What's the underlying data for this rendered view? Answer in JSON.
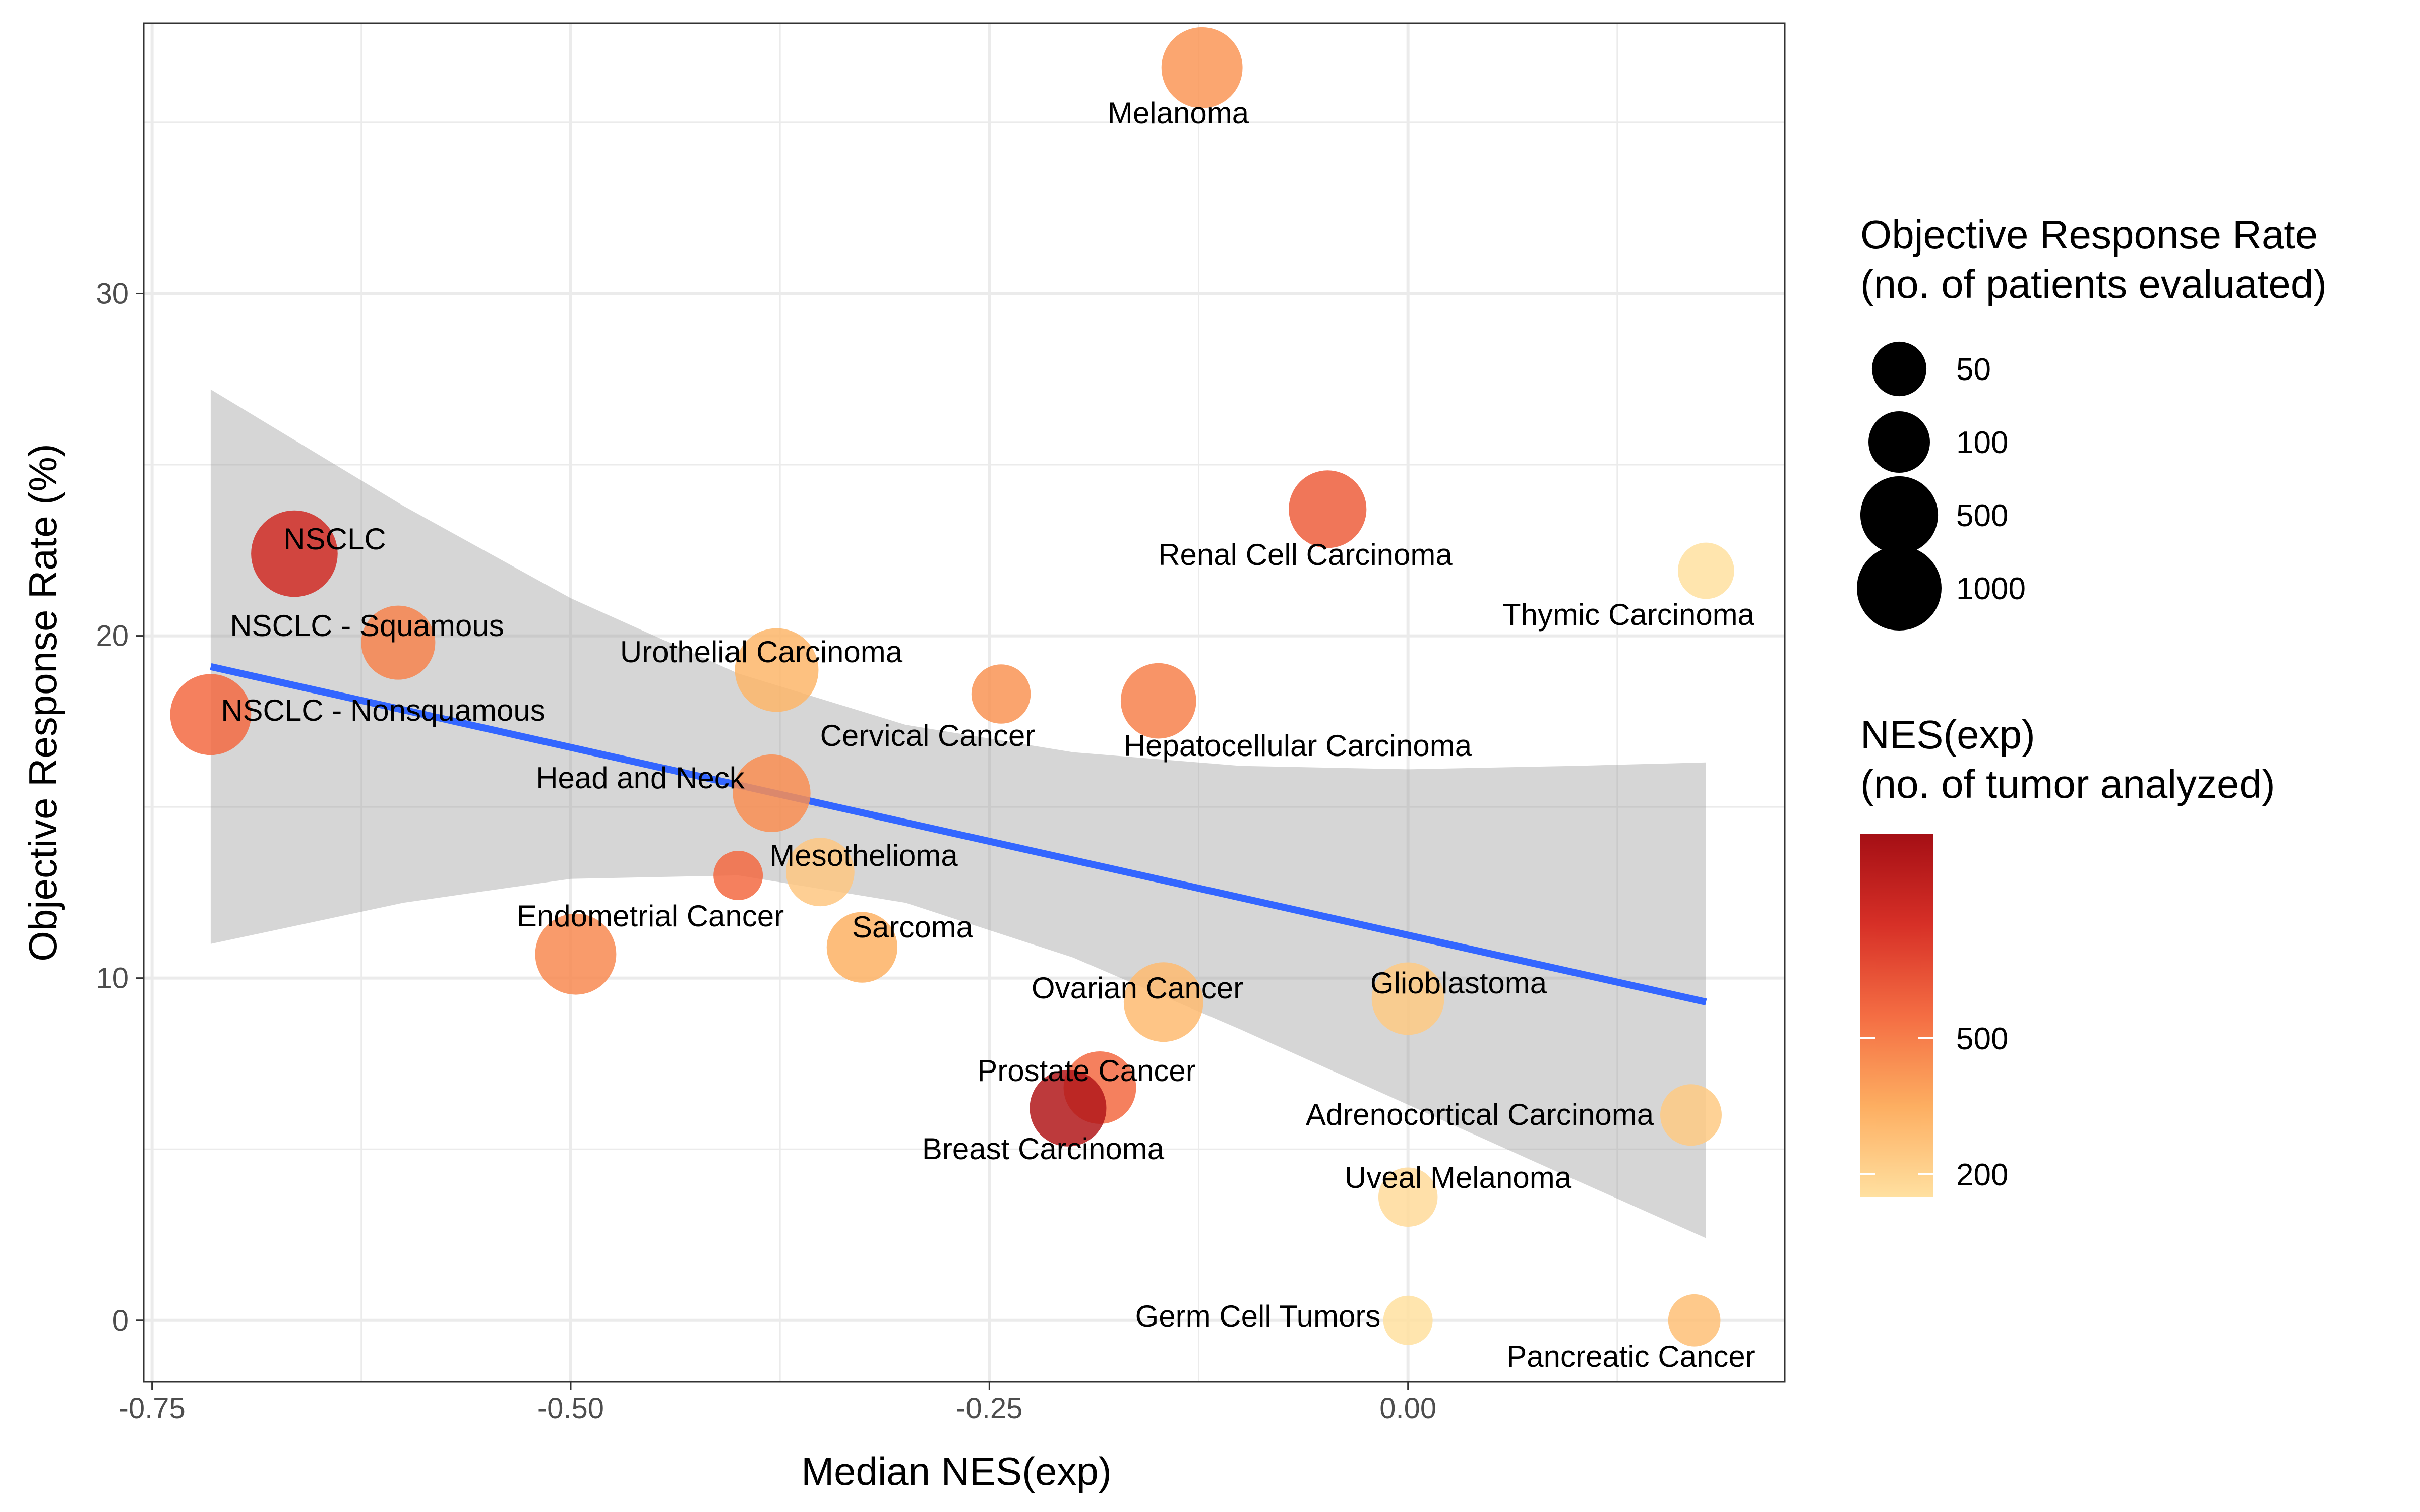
{
  "chart_data": {
    "type": "scatter",
    "xlabel": "Median NES(exp)",
    "ylabel": "Objective Response Rate (%)",
    "xlim": [
      -0.755,
      0.225
    ],
    "ylim": [
      -1.8,
      37.9
    ],
    "x_ticks": [
      {
        "value": -0.75,
        "label": "-0.75"
      },
      {
        "value": -0.5,
        "label": "-0.50"
      },
      {
        "value": -0.25,
        "label": "-0.25"
      },
      {
        "value": 0.0,
        "label": "0.00"
      }
    ],
    "y_ticks": [
      {
        "value": 0,
        "label": "0"
      },
      {
        "value": 10,
        "label": "10"
      },
      {
        "value": 20,
        "label": "20"
      },
      {
        "value": 30,
        "label": "30"
      }
    ],
    "grid": true,
    "points": [
      {
        "label": "Melanoma",
        "x": -0.123,
        "y": 36.6,
        "patients": 700,
        "tumors": 420
      },
      {
        "label": "Renal Cell Carcinoma",
        "x": -0.048,
        "y": 23.7,
        "patients": 500,
        "tumors": 600
      },
      {
        "label": "Thymic Carcinoma",
        "x": 0.178,
        "y": 21.9,
        "patients": 60,
        "tumors": 150
      },
      {
        "label": "NSCLC",
        "x": -0.665,
        "y": 22.4,
        "patients": 1200,
        "tumors": 780
      },
      {
        "label": "NSCLC - Squamous",
        "x": -0.603,
        "y": 19.8,
        "patients": 350,
        "tumors": 480
      },
      {
        "label": "Urothelial Carcinoma",
        "x": -0.377,
        "y": 19.0,
        "patients": 900,
        "tumors": 320
      },
      {
        "label": "NSCLC - Nonsquamous",
        "x": -0.715,
        "y": 17.7,
        "patients": 700,
        "tumors": 560
      },
      {
        "label": "Cervical Cancer",
        "x": -0.243,
        "y": 18.3,
        "patients": 80,
        "tumors": 430
      },
      {
        "label": "Hepatocellular Carcinoma",
        "x": -0.149,
        "y": 18.1,
        "patients": 400,
        "tumors": 490
      },
      {
        "label": "Head and Neck",
        "x": -0.38,
        "y": 15.4,
        "patients": 500,
        "tumors": 450
      },
      {
        "label": "Mesothelioma",
        "x": -0.4,
        "y": 13.0,
        "patients": 30,
        "tumors": 560
      },
      {
        "label": "Mesothelioma",
        "x": -0.351,
        "y": 13.1,
        "patients": 200,
        "tumors": 250
      },
      {
        "label": "Endometrial Cancer",
        "x": -0.497,
        "y": 10.7,
        "patients": 700,
        "tumors": 460
      },
      {
        "label": "Sarcoma",
        "x": -0.326,
        "y": 10.9,
        "patients": 250,
        "tumors": 340
      },
      {
        "label": "Ovarian Cancer",
        "x": -0.146,
        "y": 9.3,
        "patients": 600,
        "tumors": 300
      },
      {
        "label": "Glioblastoma",
        "x": 0.0,
        "y": 9.4,
        "patients": 300,
        "tumors": 240
      },
      {
        "label": "Prostate Cancer",
        "x": -0.184,
        "y": 6.8,
        "patients": 300,
        "tumors": 560
      },
      {
        "label": "Breast Carcinoma",
        "x": -0.203,
        "y": 6.2,
        "patients": 450,
        "tumors": 900
      },
      {
        "label": "Adrenocortical Carcinoma",
        "x": 0.169,
        "y": 6.0,
        "patients": 100,
        "tumors": 240
      },
      {
        "label": "Uveal Melanoma",
        "x": 0.0,
        "y": 3.6,
        "patients": 80,
        "tumors": 170
      },
      {
        "label": "Germ Cell Tumors",
        "x": 0.0,
        "y": 0.0,
        "patients": 30,
        "tumors": 150
      },
      {
        "label": "Pancreatic Cancer",
        "x": 0.171,
        "y": 0.0,
        "patients": 40,
        "tumors": 280
      }
    ],
    "trend_line": {
      "x": [
        -0.715,
        0.178
      ],
      "y": [
        19.1,
        9.3
      ]
    },
    "confidence_band": {
      "x": [
        -0.715,
        -0.6,
        -0.5,
        -0.4,
        -0.3,
        -0.2,
        -0.1,
        0.0,
        0.1,
        0.178
      ],
      "upper": [
        27.2,
        23.8,
        21.1,
        18.9,
        17.4,
        16.6,
        16.2,
        16.1,
        16.2,
        16.3
      ],
      "lower": [
        11.0,
        12.2,
        12.9,
        13.0,
        12.2,
        10.6,
        8.5,
        6.3,
        4.1,
        2.4
      ]
    },
    "legend_size": {
      "title": "Objective Response Rate\n(no. of patients evaluated)",
      "entries": [
        {
          "label": "50",
          "value": 50
        },
        {
          "label": "100",
          "value": 100
        },
        {
          "label": "500",
          "value": 500
        },
        {
          "label": "1000",
          "value": 1000
        }
      ]
    },
    "legend_color": {
      "title": "NES(exp)\n(no. of tumor analyzed)",
      "min": 150,
      "max": 950,
      "ticks": [
        {
          "label": "500",
          "value": 500
        },
        {
          "label": "200",
          "value": 200
        }
      ],
      "colors": [
        "#ffe0a0",
        "#fdae61",
        "#f46d43",
        "#d73027",
        "#a50f15"
      ]
    },
    "colors": {
      "trend": "#3366ff",
      "band": "#999999",
      "grid": "#ebebeb",
      "panel_border": "#333333"
    }
  }
}
